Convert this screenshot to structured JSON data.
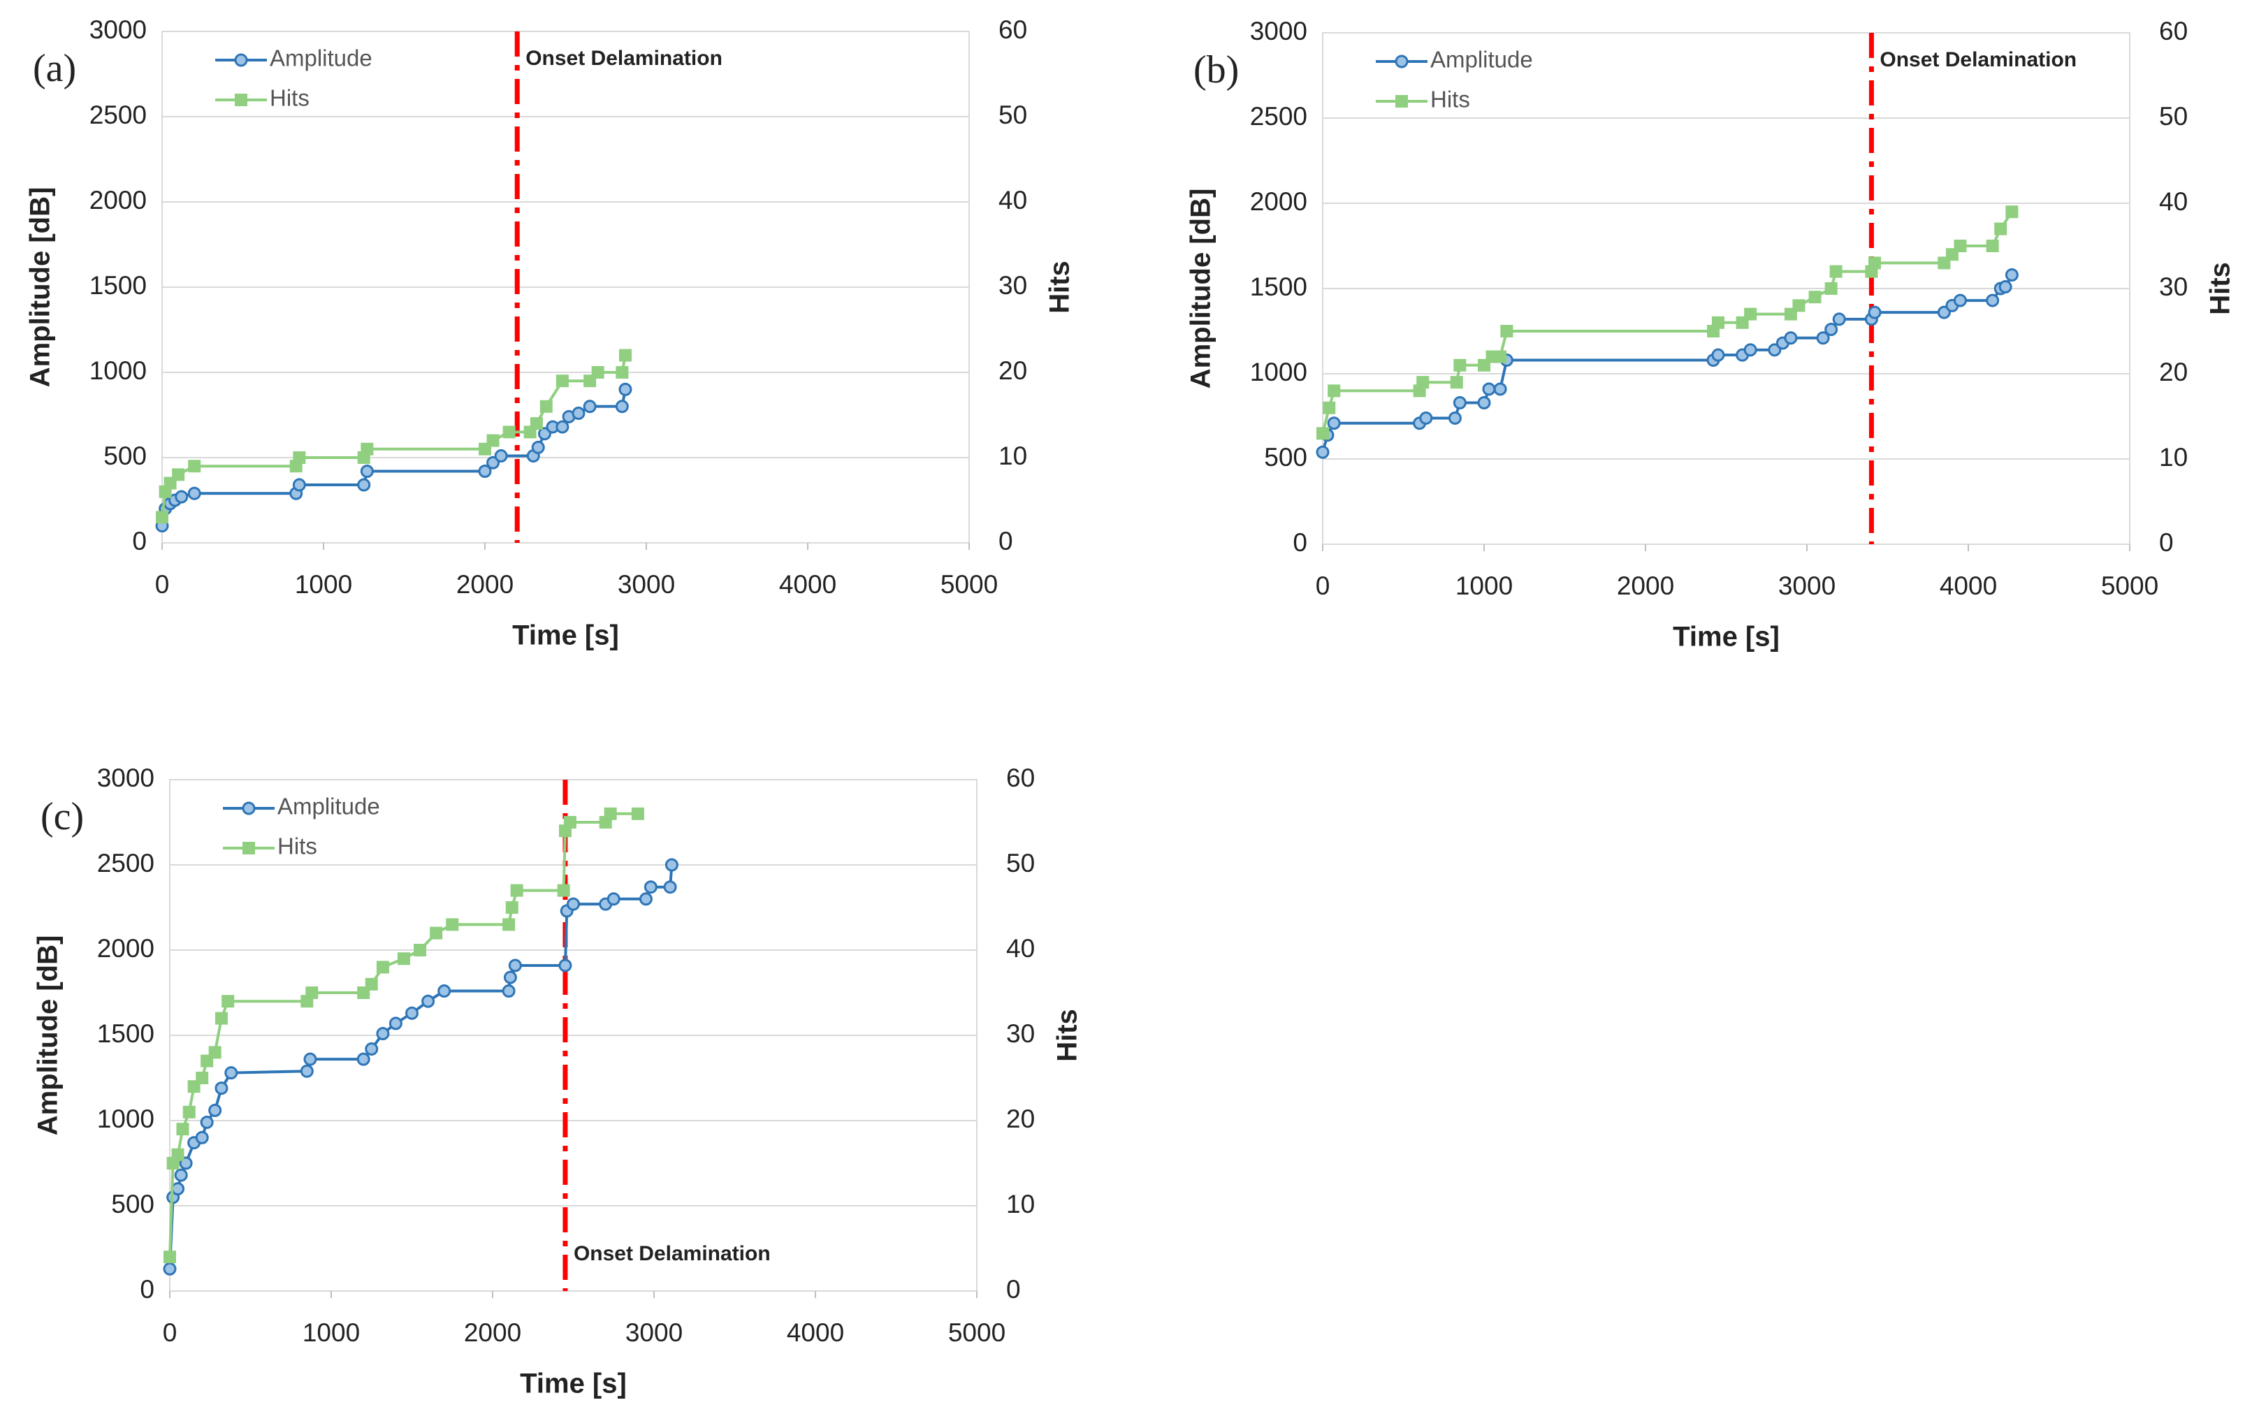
{
  "chart_data": [
    {
      "type": "line",
      "panel_label": "(a)",
      "xlabel": "Time [s]",
      "ylabel": "Amplitude [dB]",
      "y2label": "Hits",
      "xlim": [
        0,
        5000
      ],
      "xticks": [
        0,
        1000,
        2000,
        3000,
        4000,
        5000
      ],
      "ylim": [
        0,
        3000
      ],
      "yticks": [
        0,
        500,
        1000,
        1500,
        2000,
        2500,
        3000
      ],
      "y2lim": [
        0,
        60
      ],
      "y2ticks": [
        0,
        10,
        20,
        30,
        40,
        50,
        60
      ],
      "grid": true,
      "series": [
        {
          "name": "Amplitude",
          "color": "#2e75b6",
          "marker": "circle",
          "x": [
            0,
            20,
            50,
            80,
            120,
            200,
            830,
            850,
            1250,
            1270,
            2000,
            2050,
            2100,
            2300,
            2330,
            2370,
            2420,
            2480,
            2520,
            2580,
            2650,
            2850,
            2870
          ],
          "values": [
            100,
            200,
            230,
            250,
            270,
            290,
            290,
            340,
            340,
            420,
            420,
            470,
            510,
            510,
            560,
            640,
            680,
            680,
            740,
            760,
            800,
            800,
            900
          ]
        },
        {
          "name": "Hits",
          "color": "#8fcf7f",
          "marker": "square",
          "axis": "y2",
          "x": [
            0,
            20,
            50,
            100,
            200,
            830,
            850,
            1250,
            1270,
            2000,
            2050,
            2150,
            2280,
            2320,
            2380,
            2480,
            2650,
            2700,
            2850,
            2870
          ],
          "values": [
            3,
            6,
            7,
            8,
            9,
            9,
            10,
            10,
            11,
            11,
            12,
            13,
            13,
            14,
            16,
            19,
            19,
            20,
            20,
            22
          ]
        }
      ],
      "onset": {
        "x": 2200,
        "label": "Onset Delamination",
        "color": "#ff0000"
      }
    },
    {
      "type": "line",
      "panel_label": "(b)",
      "xlabel": "Time [s]",
      "ylabel": "Amplitude [dB]",
      "y2label": "Hits",
      "xlim": [
        0,
        5000
      ],
      "xticks": [
        0,
        1000,
        2000,
        3000,
        4000,
        5000
      ],
      "ylim": [
        0,
        3000
      ],
      "yticks": [
        0,
        500,
        1000,
        1500,
        2000,
        2500,
        3000
      ],
      "y2lim": [
        0,
        60
      ],
      "y2ticks": [
        0,
        10,
        20,
        30,
        40,
        50,
        60
      ],
      "grid": true,
      "series": [
        {
          "name": "Amplitude",
          "color": "#2e75b6",
          "marker": "circle",
          "x": [
            0,
            30,
            70,
            600,
            640,
            820,
            850,
            1000,
            1030,
            1100,
            1140,
            2420,
            2450,
            2600,
            2650,
            2800,
            2850,
            2900,
            3100,
            3150,
            3200,
            3400,
            3420,
            3850,
            3900,
            3950,
            4150,
            4200,
            4230,
            4270
          ],
          "values": [
            540,
            640,
            710,
            710,
            740,
            740,
            830,
            830,
            910,
            910,
            1080,
            1080,
            1110,
            1110,
            1140,
            1140,
            1180,
            1210,
            1210,
            1260,
            1320,
            1320,
            1360,
            1360,
            1400,
            1430,
            1430,
            1500,
            1510,
            1580
          ]
        },
        {
          "name": "Hits",
          "color": "#8fcf7f",
          "marker": "square",
          "axis": "y2",
          "x": [
            0,
            40,
            70,
            600,
            620,
            830,
            850,
            1000,
            1050,
            1100,
            1140,
            2420,
            2450,
            2600,
            2650,
            2900,
            2950,
            3050,
            3150,
            3180,
            3400,
            3420,
            3850,
            3900,
            3950,
            4150,
            4200,
            4270
          ],
          "values": [
            13,
            16,
            18,
            18,
            19,
            19,
            21,
            21,
            22,
            22,
            25,
            25,
            26,
            26,
            27,
            27,
            28,
            29,
            30,
            32,
            32,
            33,
            33,
            34,
            35,
            35,
            37,
            39
          ]
        }
      ],
      "onset": {
        "x": 3400,
        "label": "Onset Delamination",
        "color": "#ff0000"
      }
    },
    {
      "type": "line",
      "panel_label": "(c)",
      "xlabel": "Time [s]",
      "ylabel": "Amplitude [dB]",
      "y2label": "Hits",
      "xlim": [
        0,
        5000
      ],
      "xticks": [
        0,
        1000,
        2000,
        3000,
        4000,
        5000
      ],
      "ylim": [
        0,
        3000
      ],
      "yticks": [
        0,
        500,
        1000,
        1500,
        2000,
        2500,
        3000
      ],
      "y2lim": [
        0,
        60
      ],
      "y2ticks": [
        0,
        10,
        20,
        30,
        40,
        50,
        60
      ],
      "grid": true,
      "series": [
        {
          "name": "Amplitude",
          "color": "#2e75b6",
          "marker": "circle",
          "x": [
            0,
            20,
            50,
            70,
            100,
            150,
            200,
            230,
            280,
            320,
            380,
            850,
            870,
            1200,
            1250,
            1320,
            1400,
            1500,
            1600,
            1700,
            2100,
            2110,
            2140,
            2450,
            2460,
            2500,
            2700,
            2750,
            2950,
            2980,
            3100,
            3110
          ],
          "values": [
            130,
            550,
            600,
            680,
            750,
            870,
            900,
            990,
            1060,
            1190,
            1280,
            1290,
            1360,
            1360,
            1420,
            1510,
            1570,
            1630,
            1700,
            1760,
            1760,
            1840,
            1910,
            1910,
            2230,
            2270,
            2270,
            2300,
            2300,
            2370,
            2370,
            2500
          ]
        },
        {
          "name": "Hits",
          "color": "#8fcf7f",
          "marker": "square",
          "axis": "y2",
          "x": [
            0,
            20,
            50,
            80,
            120,
            150,
            200,
            230,
            280,
            320,
            360,
            850,
            880,
            1200,
            1250,
            1320,
            1450,
            1550,
            1650,
            1750,
            2100,
            2120,
            2150,
            2440,
            2450,
            2480,
            2700,
            2730,
            2900
          ],
          "values": [
            4,
            15,
            16,
            19,
            21,
            24,
            25,
            27,
            28,
            32,
            34,
            34,
            35,
            35,
            36,
            38,
            39,
            40,
            42,
            43,
            43,
            45,
            47,
            47,
            54,
            55,
            55,
            56,
            56
          ]
        }
      ],
      "onset": {
        "x": 2450,
        "label": "Onset Delamination",
        "color": "#ff0000"
      }
    }
  ]
}
